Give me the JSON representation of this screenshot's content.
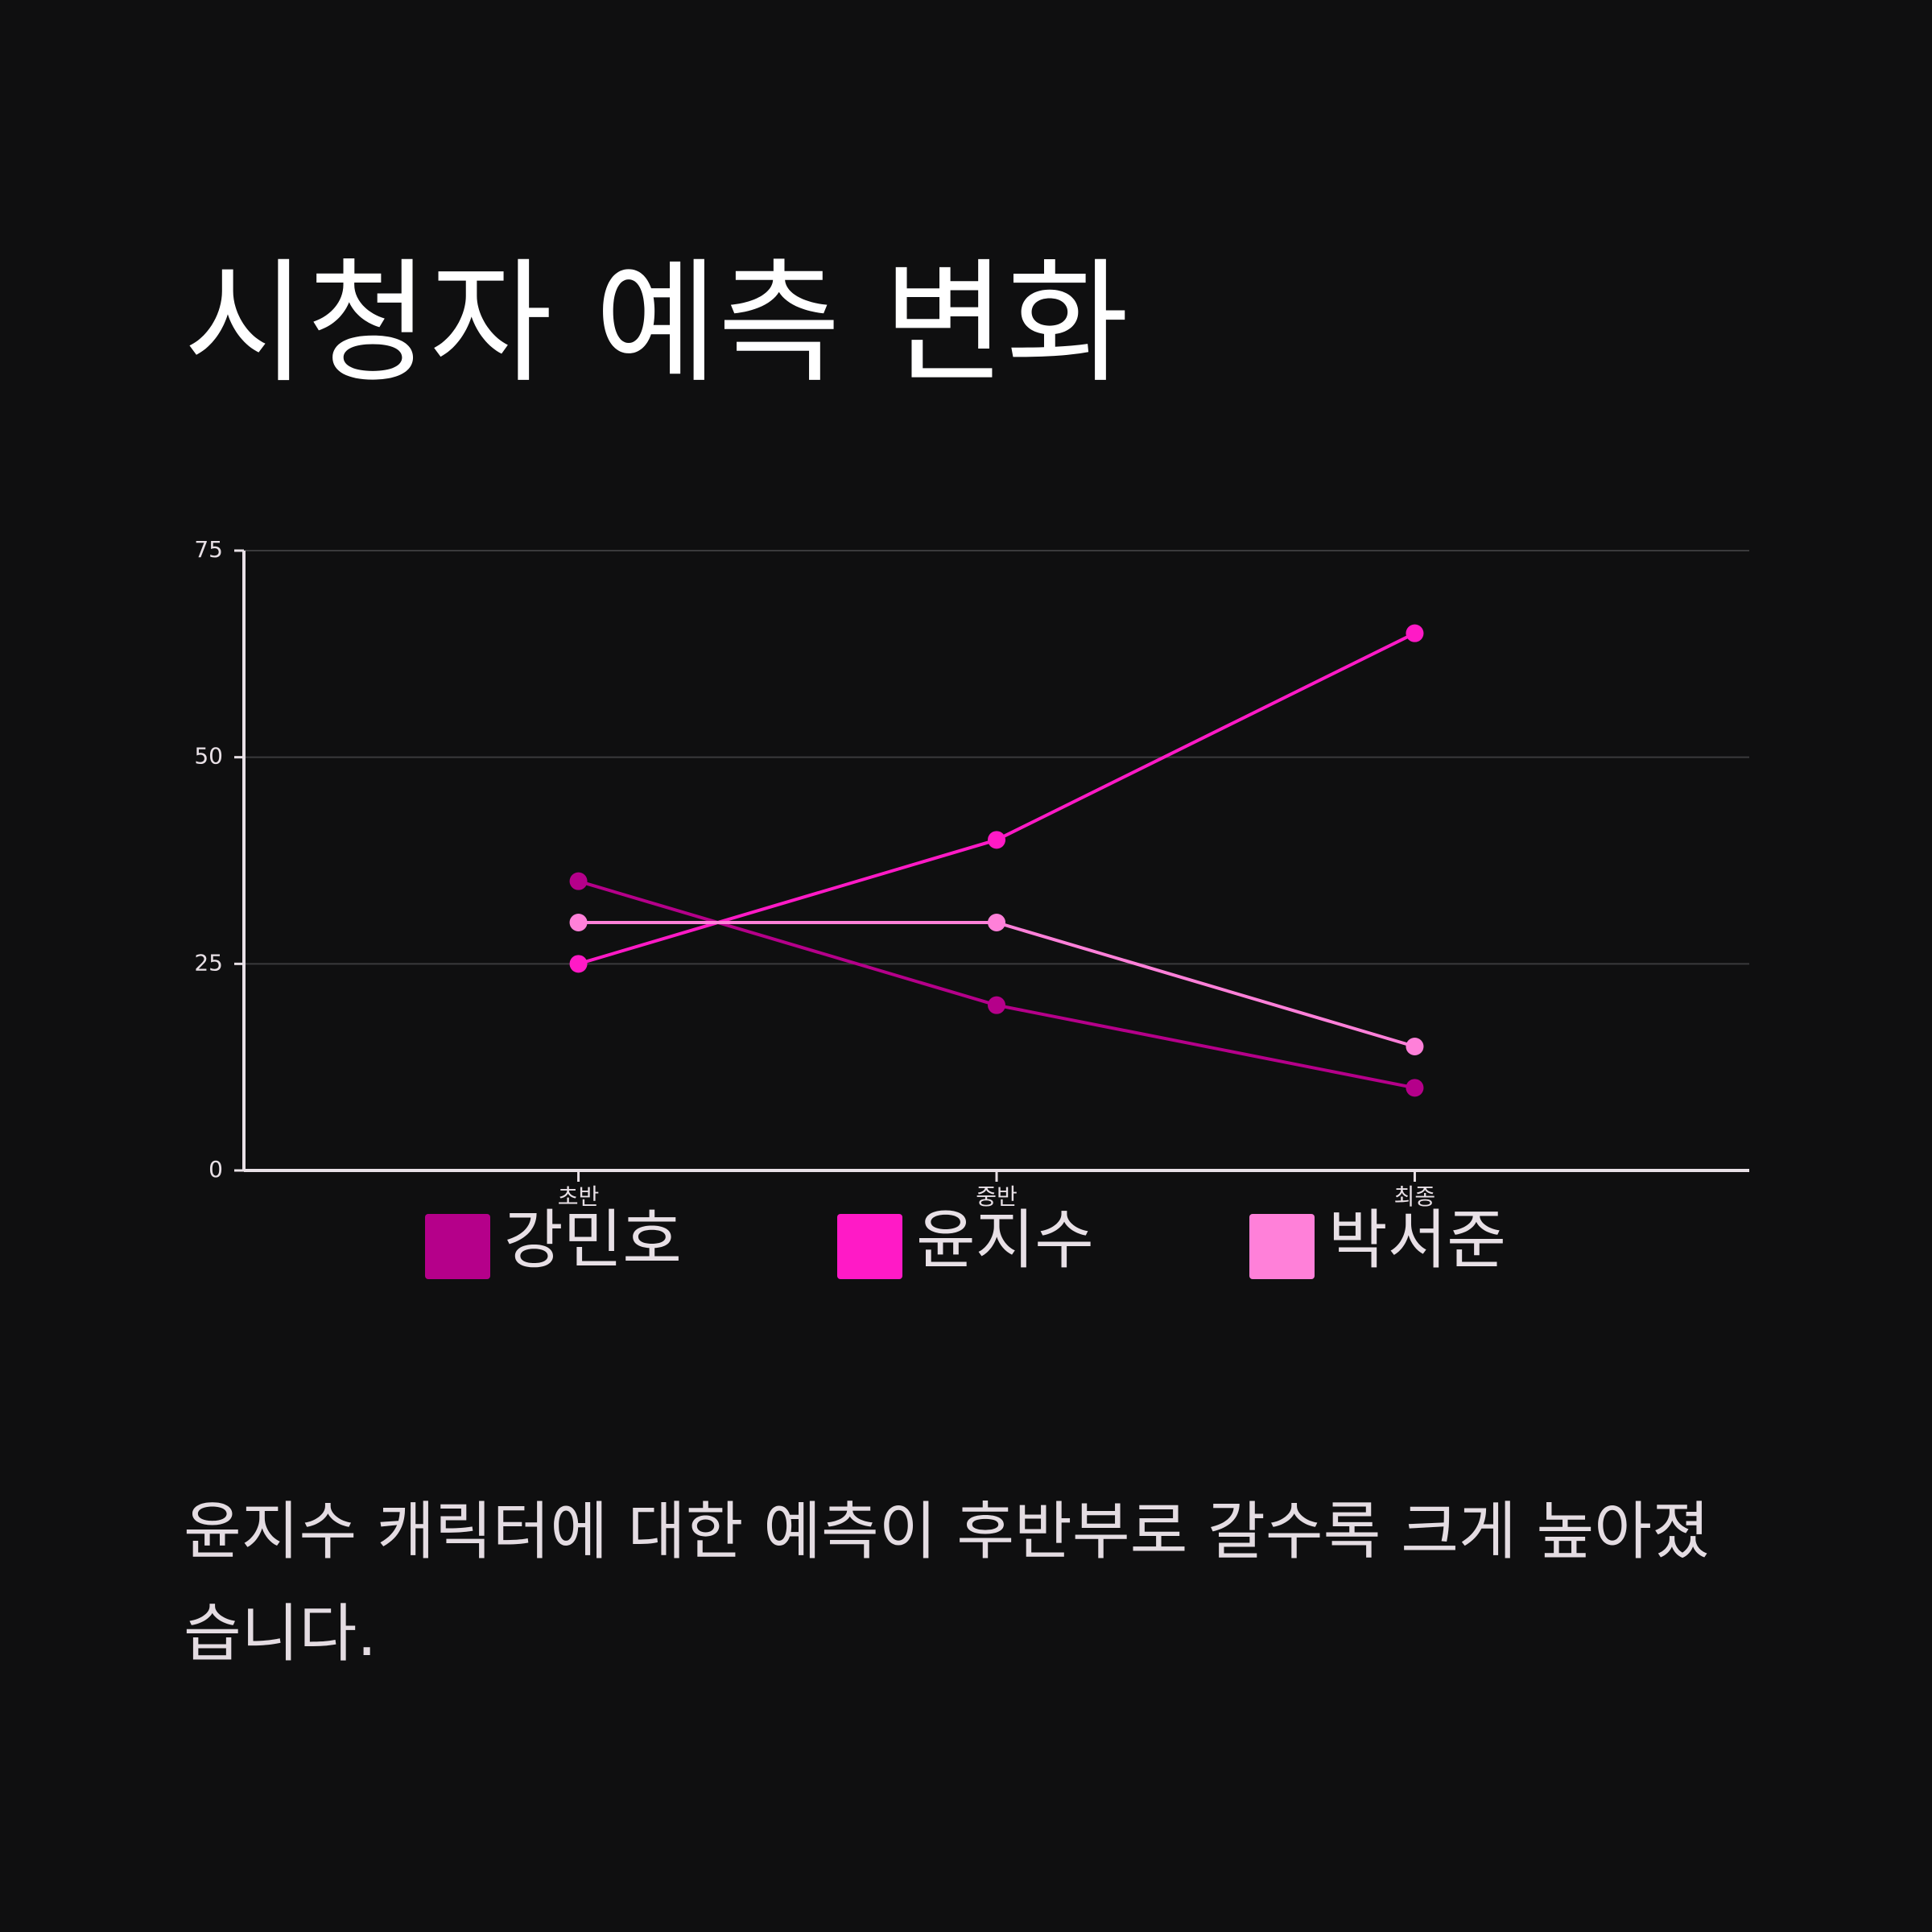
{
  "chart_data": {
    "type": "line",
    "title": "시청자 예측 변화",
    "categories": [
      "초반",
      "중반",
      "최종"
    ],
    "series": [
      {
        "name": "강민호",
        "color": "#b5008a",
        "values": [
          35,
          20,
          10
        ]
      },
      {
        "name": "윤지수",
        "color": "#ff1ac6",
        "values": [
          25,
          40,
          65
        ]
      },
      {
        "name": "박서준",
        "color": "#ff80d9",
        "values": [
          30,
          30,
          15
        ]
      }
    ],
    "ylim": [
      0,
      75
    ],
    "yticks": [
      0,
      25,
      50,
      75
    ],
    "grid": true,
    "caption": "윤지수 캐릭터에 대한 예측이 후반부로 갈수록 크게 높아졌습니다."
  }
}
